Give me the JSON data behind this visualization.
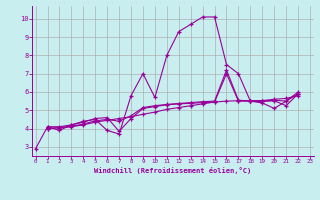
{
  "background_color": "#c8eef0",
  "line_color": "#990099",
  "grid_color": "#aaaaaa",
  "xlabel": "Windchill (Refroidissement éolien,°C)",
  "xlim": [
    -0.3,
    23.3
  ],
  "ylim": [
    2.5,
    10.7
  ],
  "yticks": [
    3,
    4,
    5,
    6,
    7,
    8,
    9,
    10
  ],
  "xticks": [
    0,
    1,
    2,
    3,
    4,
    5,
    6,
    7,
    8,
    9,
    10,
    11,
    12,
    13,
    14,
    15,
    16,
    17,
    18,
    19,
    20,
    21,
    22,
    23
  ],
  "series1_x": [
    0,
    1,
    2,
    3,
    4,
    5,
    6,
    7,
    8,
    9,
    10,
    11,
    12,
    13,
    14,
    15,
    16,
    17,
    18,
    19,
    20,
    21,
    22
  ],
  "series1_y": [
    2.9,
    4.1,
    3.9,
    4.2,
    4.4,
    4.5,
    3.9,
    3.7,
    5.8,
    7.0,
    5.7,
    8.0,
    9.3,
    9.7,
    10.1,
    10.1,
    7.5,
    7.0,
    5.5,
    5.4,
    5.1,
    5.5,
    5.9
  ],
  "series2_x": [
    1,
    2,
    3,
    4,
    5,
    6,
    7,
    8,
    9,
    10,
    11,
    12,
    13,
    14,
    15,
    16,
    17,
    18,
    19,
    20,
    21,
    22
  ],
  "series2_y": [
    4.0,
    4.05,
    4.1,
    4.2,
    4.35,
    4.45,
    4.55,
    4.65,
    4.78,
    4.9,
    5.05,
    5.15,
    5.25,
    5.35,
    5.45,
    5.5,
    5.52,
    5.53,
    5.53,
    5.6,
    5.65,
    5.8
  ],
  "series3_x": [
    1,
    2,
    3,
    4,
    5,
    6,
    7,
    8,
    9,
    10,
    11,
    12,
    13,
    14,
    15,
    16,
    17,
    18,
    19,
    20,
    21,
    22
  ],
  "series3_y": [
    4.1,
    4.1,
    4.2,
    4.35,
    4.55,
    4.6,
    3.85,
    4.55,
    5.1,
    5.2,
    5.3,
    5.35,
    5.38,
    5.42,
    5.45,
    7.0,
    5.5,
    5.5,
    5.48,
    5.52,
    5.25,
    5.9
  ],
  "series4_x": [
    1,
    2,
    3,
    4,
    5,
    6,
    7,
    8,
    9,
    10,
    11,
    12,
    13,
    14,
    15,
    16,
    17,
    18,
    19,
    20,
    21,
    22
  ],
  "series4_y": [
    4.0,
    4.05,
    4.12,
    4.25,
    4.42,
    4.5,
    4.4,
    4.7,
    5.15,
    5.25,
    5.32,
    5.37,
    5.42,
    5.47,
    5.5,
    7.2,
    5.55,
    5.5,
    5.5,
    5.55,
    5.5,
    6.0
  ]
}
